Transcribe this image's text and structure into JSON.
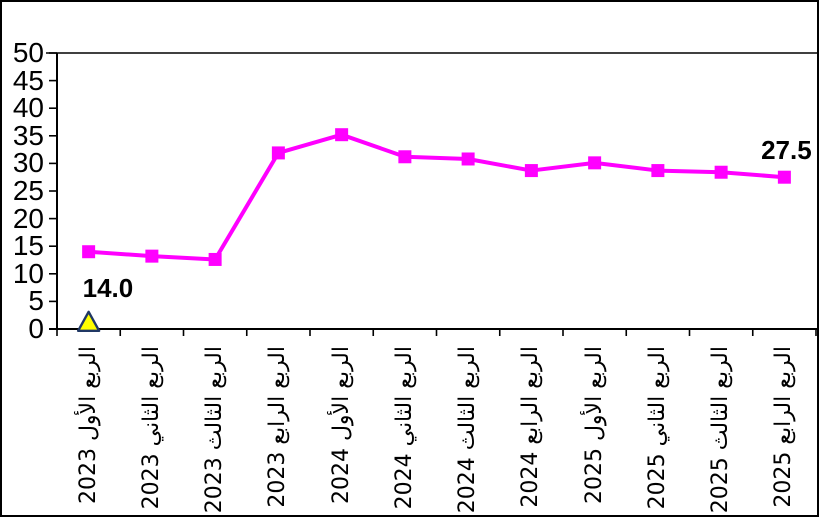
{
  "chart_data": {
    "type": "line",
    "title": "",
    "xlabel": "",
    "ylabel": "",
    "categories": [
      "الربع الأول 2023",
      "الربع الثاني 2023",
      "الربع الثالث 2023",
      "الربع الرابع 2023",
      "الربع الأول 2024",
      "الربع الثاني 2024",
      "الربع الثالث 2024",
      "الربع الرابع 2024",
      "الربع الأول 2025",
      "الربع الثاني 2025",
      "الربع الثالث 2025",
      "الربع الرابع 2025"
    ],
    "series": [
      {
        "name": "main-series",
        "color": "#FF00FF",
        "marker": "square",
        "marker_size": 13,
        "line_width": 4,
        "values": [
          14.0,
          13.2,
          12.6,
          31.9,
          35.2,
          31.2,
          30.8,
          28.7,
          30.1,
          28.7,
          28.4,
          27.5
        ]
      },
      {
        "name": "secondary-marker-series",
        "color": "#FFFF00",
        "marker": "triangle",
        "marker_border_color": "#203864",
        "values": [
          1.3,
          null,
          null,
          null,
          null,
          null,
          null,
          null,
          null,
          null,
          null,
          null
        ]
      }
    ],
    "data_labels": [
      {
        "index": 0,
        "text": "14.0",
        "position": "below"
      },
      {
        "index": 11,
        "text": "27.5",
        "position": "above"
      }
    ],
    "ylim": [
      0,
      50
    ],
    "yticks": [
      0,
      5,
      10,
      15,
      20,
      25,
      30,
      35,
      40,
      45,
      50
    ],
    "x_label_rotation": -90,
    "grid": false,
    "legend": "none",
    "axis_color": "#000000",
    "background": "#FFFFFF",
    "border_color": "#000000"
  }
}
